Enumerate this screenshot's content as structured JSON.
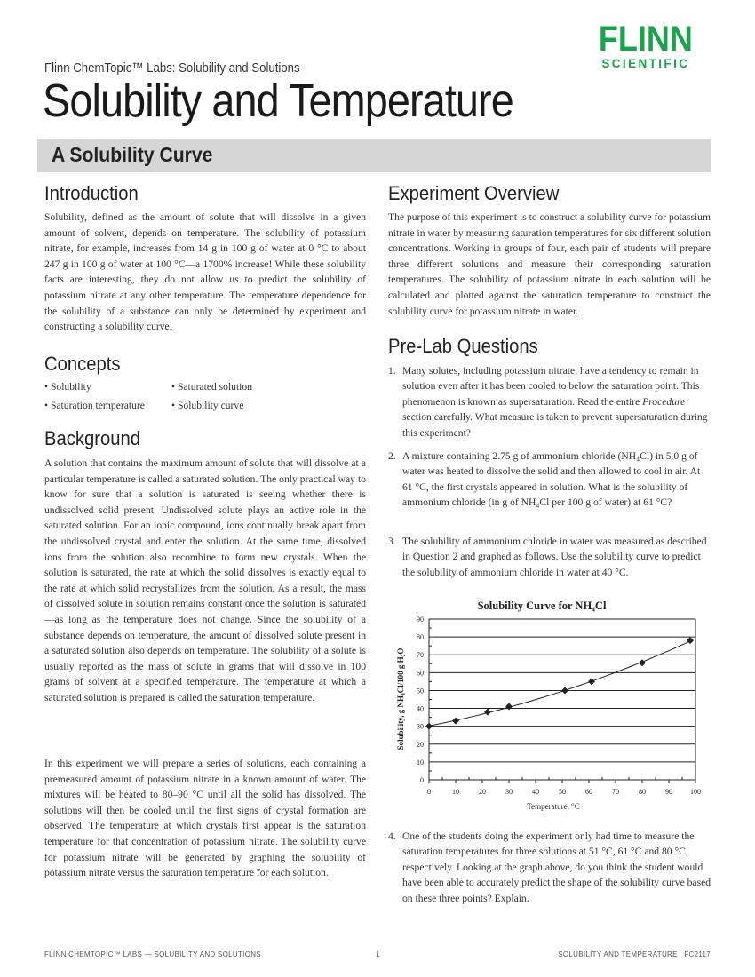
{
  "header": {
    "series": "Flinn ChemTopic™ Labs: Solubility and Solutions",
    "title": "Solubility and Temperature",
    "subtitle": "A Solubility Curve",
    "logo": {
      "line1": "FLINN",
      "line2": "SCIENTIFIC",
      "color": "#19a34a"
    }
  },
  "introduction": {
    "heading": "Introduction",
    "text": "Solubility, defined as the amount of solute that will dissolve in a given amount of solvent, depends on temperature. The solubility of potassium nitrate, for example, increases from 14 g in 100 g of water at 0 °C to about 247 g in 100 g of water at 100 °C—a 1700% increase! While these solubility facts are interesting, they do not allow us to predict the solubility of potassium nitrate at any other temperature. The temperature dependence for the solubility of a substance can only be determined by experiment and constructing a solubility curve."
  },
  "concepts": {
    "heading": "Concepts",
    "items": [
      "• Solubility",
      "• Saturated solution",
      "• Saturation temperature",
      "• Solubility curve"
    ]
  },
  "background": {
    "heading": "Background",
    "p1": "A solution that contains the maximum amount of solute that will dissolve at a particular temperature is called a saturated solution. The only practical way to know for sure that a solution is saturated is seeing whether there is undissolved solid present. Undissolved solute plays an active role in the saturated solution. For an ionic compound, ions continually break apart from the undissolved crystal and enter the solution. At the same time, dissolved ions from the solution also recombine to form new crystals. When the solution is saturated, the rate at which the solid dissolves is exactly equal to the rate at which solid recrystallizes from the solution. As a result, the mass of dissolved solute in solution remains constant once the solution is saturated—as long as the temperature does not change. Since the solubility of a substance depends on temperature, the amount of dissolved solute present in a saturated solution also depends on temperature. The solubility of a solute is usually reported as the mass of solute in grams that will dissolve in 100 grams of solvent at a specified temperature. The temperature at which a saturated solution is prepared is called the saturation temperature.",
    "p2": "In this experiment we will prepare a series of solutions, each containing a premeasured amount of potassium nitrate in a known amount of water. The mixtures will be heated to 80–90 °C until all the solid has dissolved. The solutions will then be cooled until the first signs of crystal formation are observed. The temperature at which crystals first appear is the saturation temperature for that concentration of potassium nitrate. The solubility curve for potassium nitrate will be generated by graphing the solubility of potassium nitrate versus the saturation temperature for each solution."
  },
  "overview": {
    "heading": "Experiment Overview",
    "text": "The purpose of this experiment is to construct a solubility curve for potassium nitrate in water by measuring saturation temperatures for six different solution concentrations. Working in groups of four, each pair of students will prepare three different solutions and measure their corresponding saturation temperatures. The solubility of potassium nitrate in each solution will be calculated and plotted against the saturation temperature to construct the solubility curve for potassium nitrate in water."
  },
  "prelab": {
    "heading": "Pre-Lab Questions",
    "questions": [
      {
        "num": "1.",
        "pre": "Many solutes, including potassium nitrate, have a tendency to remain in solution even after it has been cooled to below the saturation point. This phenomenon is known as supersaturation. Read the entire ",
        "em": "Procedure",
        "post": " section carefully. What measure is taken to prevent supersaturation during this experiment?"
      },
      {
        "num": "2.",
        "pre": "A mixture containing 2.75 g of ammonium chloride (NH₄Cl) in 5.0 g of water was heated to dissolve the solid and then allowed to cool in air. At 61 °C, the first crystals appeared in solution. What is the solubility of ammonium chloride (in g of NH₄Cl per 100 g of water) at 61 °C?",
        "em": "",
        "post": ""
      },
      {
        "num": "3.",
        "pre": "The solubility of ammonium chloride in water was measured as described in Question 2 and graphed as follows. Use the solubility curve to predict the solubility of ammonium chloride in water at 40 °C.",
        "em": "",
        "post": ""
      },
      {
        "num": "4.",
        "pre": "One of the students doing the experiment only had time to measure the saturation temperatures for three solutions at 51 °C, 61 °C and 80 °C, respectively. Looking at the graph above, do you think the student would have been able to accurately predict the shape of the solubility curve based on these three points? Explain.",
        "em": "",
        "post": ""
      }
    ]
  },
  "chart_data": {
    "type": "line",
    "title": "Solubility Curve for NH₄Cl",
    "xlabel": "Temperature, °C",
    "ylabel": "Solubility, g NH₄Cl/100 g H₂O",
    "xlim": [
      0,
      100
    ],
    "ylim": [
      0,
      90
    ],
    "xticks": [
      "0",
      "10",
      "20",
      "30",
      "40",
      "50",
      "60",
      "70",
      "80",
      "90",
      "100"
    ],
    "yticks": [
      "0",
      "10",
      "20",
      "30",
      "40",
      "50",
      "60",
      "70",
      "80",
      "90"
    ],
    "grid": "horizontal",
    "x": [
      0,
      10,
      22,
      30,
      51,
      61,
      80,
      98
    ],
    "y": [
      30,
      33,
      38,
      41,
      50,
      55,
      65.5,
      78
    ]
  },
  "footer": {
    "left": "FLINN CHEMTOPIC™ LABS — SOLUBILITY AND SOLUTIONS",
    "page": "1",
    "right": "SOLUBILITY AND TEMPERATURE   FC2117"
  }
}
